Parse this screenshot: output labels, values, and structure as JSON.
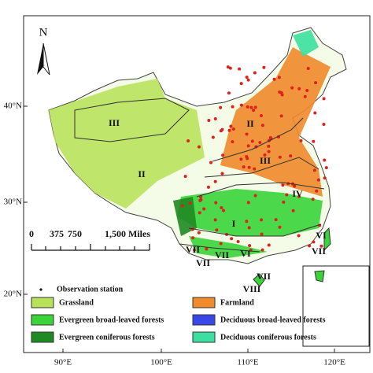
{
  "map": {
    "north_label": "N",
    "lat_labels": [
      "40°N",
      "30°N",
      "20°N"
    ],
    "lon_labels": [
      "90°E",
      "100°E",
      "110°E",
      "120°E"
    ],
    "scale_labels": [
      "0",
      "375",
      "750",
      "1,500 Miles"
    ],
    "regions": [
      "III",
      "II",
      "II",
      "III",
      "IV",
      "I",
      "VI",
      "VII",
      "VI",
      "VII",
      "VII",
      "VIII",
      "VII",
      "VII"
    ],
    "legend": [
      {
        "label": "Observation station",
        "color": "#e0201c"
      },
      {
        "label": "Grassland",
        "color": "#b9e25c"
      },
      {
        "label": "Farmland",
        "color": "#f08a2a"
      },
      {
        "label": "Evergreen broad-leaved forests",
        "color": "#3ad43a"
      },
      {
        "label": "Deciduous broad-leaved forests",
        "color": "#3848e8"
      },
      {
        "label": "Evergreen coniferous forests",
        "color": "#1f8a22"
      },
      {
        "label": "Deciduous coniferous forests",
        "color": "#3be0a0"
      }
    ]
  }
}
